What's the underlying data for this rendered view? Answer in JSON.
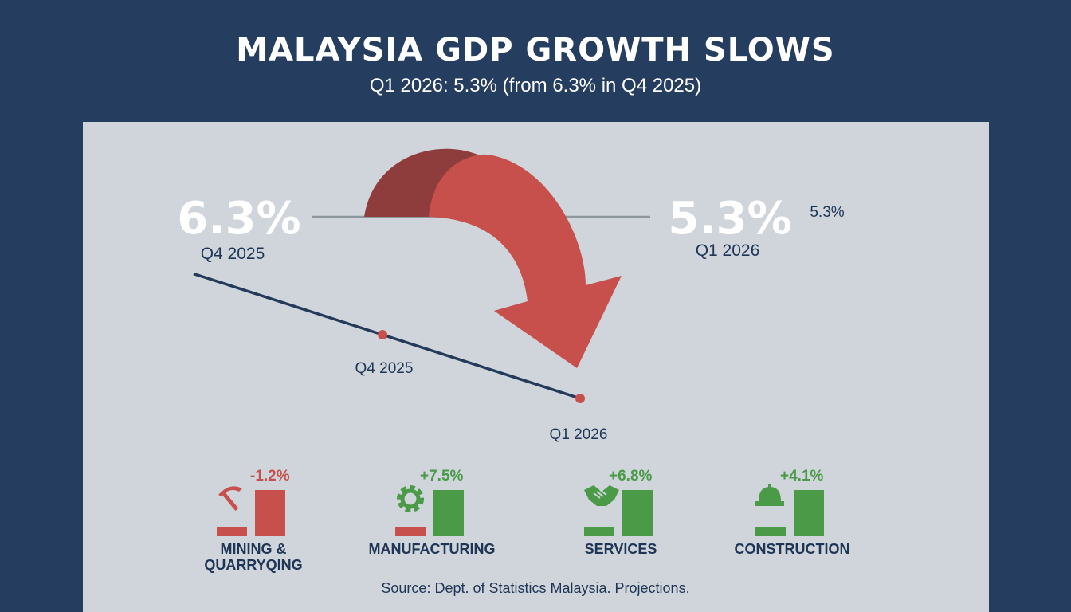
{
  "header": {
    "title": "MALAYSIA GDP GROWTH SLOWS",
    "subtitle": "Q1 2026: 5.3% (from 6.3% in Q4 2025)"
  },
  "colors": {
    "background": "#253d5e",
    "panel": "#cfd5da",
    "decline": "#c8504c",
    "growth": "#4a9a48",
    "line": "#233a5b"
  },
  "big_values": {
    "left_value": "6.3%",
    "left_label": "Q4 2025",
    "right_value": "5.3%",
    "right_label": "Q1 2026",
    "right_small": "5.3%"
  },
  "chart_data": {
    "type": "line",
    "categories": [
      "Q4 2025",
      "Q1 2026"
    ],
    "series": [
      {
        "values": [
          6.3,
          5.3
        ]
      }
    ],
    "title": "MALAYSIA GDP GROWTH SLOWS",
    "xlabel": "",
    "ylabel": ""
  },
  "sectors": [
    {
      "icon": "pickaxe-icon",
      "change": "-1.2%",
      "label_lines": [
        "MINING &",
        "QUARRYQING"
      ],
      "trend": "down"
    },
    {
      "icon": "gear-icon",
      "change": "+7.5%",
      "label_lines": [
        "MANUFACTURING"
      ],
      "trend": "up"
    },
    {
      "icon": "handshake-icon",
      "change": "+6.8%",
      "label_lines": [
        "SERVICES"
      ],
      "trend": "up"
    },
    {
      "icon": "hard-hat-icon",
      "change": "+4.1%",
      "label_lines": [
        "CONSTRUCTION"
      ],
      "trend": "up"
    }
  ],
  "footer": {
    "source": "Source: Dept. of Statistics Malaysia. Projections."
  }
}
